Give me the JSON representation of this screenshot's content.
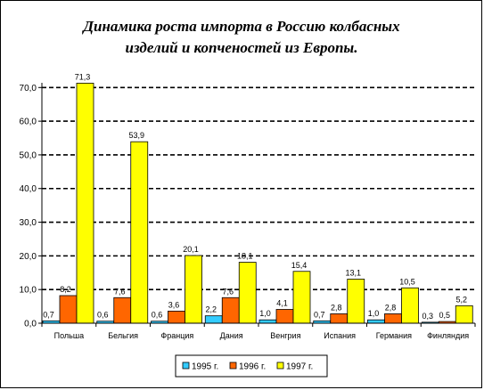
{
  "chart_data": {
    "type": "bar",
    "title_lines": [
      "Динамика роста импорта в Россию колбасных",
      "изделий и копченостей из Европы."
    ],
    "categories": [
      "Польша",
      "Бельгия",
      "Франция",
      "Дания",
      "Венгрия",
      "Испания",
      "Германия",
      "Финляндия"
    ],
    "series": [
      {
        "name": "1995 г.",
        "color": "#33CCFF",
        "values": [
          0.7,
          0.6,
          0.6,
          2.2,
          1.0,
          0.7,
          1.0,
          0.3
        ],
        "labels": [
          "0,7",
          "0,6",
          "0,6",
          "2,2",
          "1,0",
          "0,7",
          "1,0",
          "0,3"
        ]
      },
      {
        "name": "1996 г.",
        "color": "#FF6600",
        "values": [
          8.2,
          7.6,
          3.6,
          7.6,
          4.1,
          2.8,
          2.8,
          0.5
        ],
        "labels": [
          "8,2",
          "7,6",
          "3,6",
          "7,6",
          "4,1",
          "2,8",
          "2,8",
          "0,5"
        ]
      },
      {
        "name": "1997 г.",
        "color": "#FFFF00",
        "values": [
          71.3,
          53.9,
          20.1,
          18.1,
          15.4,
          13.1,
          10.5,
          5.2
        ],
        "labels": [
          "71,3",
          "53,9",
          "20,1",
          "18,1",
          "15,4",
          "13,1",
          "10,5",
          "5,2"
        ]
      }
    ],
    "y_ticks": [
      0,
      10,
      20,
      30,
      40,
      50,
      60,
      70
    ],
    "y_tick_labels": [
      "0,0",
      "10,0",
      "20,0",
      "30,0",
      "40,0",
      "50,0",
      "60,0",
      "70,0"
    ],
    "ylim": [
      0,
      70
    ],
    "grid": "dashed-horizontal",
    "legend_position": "bottom",
    "xlabel": "",
    "ylabel": ""
  }
}
